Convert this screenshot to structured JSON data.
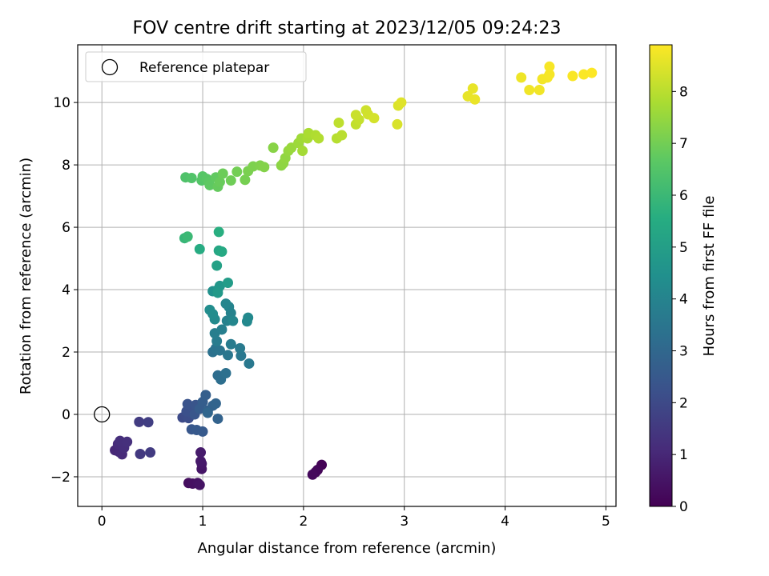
{
  "chart_data": {
    "type": "scatter",
    "title": "FOV centre drift starting at 2023/12/05 09:24:23",
    "xlabel": "Angular distance from reference (arcmin)",
    "ylabel": "Rotation from reference (arcmin)",
    "xlim": [
      -0.24,
      5.1
    ],
    "ylim": [
      -2.95,
      11.85
    ],
    "xticks": [
      0,
      1,
      2,
      3,
      4,
      5
    ],
    "xtick_labels": [
      "0",
      "1",
      "2",
      "3",
      "4",
      "5"
    ],
    "yticks": [
      -2,
      0,
      2,
      4,
      6,
      8,
      10
    ],
    "ytick_labels": [
      "−2",
      "0",
      "2",
      "4",
      "6",
      "8",
      "10"
    ],
    "grid": true,
    "legend": {
      "location": "upper left",
      "entries": [
        "Reference platepar"
      ]
    },
    "reference_point": {
      "x": 0,
      "y": 0,
      "marker": "open circle"
    },
    "colorbar": {
      "label": "Hours from first FF file",
      "colormap": "viridis",
      "range": [
        0,
        8.9
      ],
      "ticks": [
        0,
        1,
        2,
        3,
        4,
        5,
        6,
        7,
        8
      ],
      "tick_labels": [
        "0",
        "1",
        "2",
        "3",
        "4",
        "5",
        "6",
        "7",
        "8"
      ]
    },
    "points": [
      {
        "x": 2.18,
        "y": -1.62,
        "t": 0.05
      },
      {
        "x": 2.14,
        "y": -1.78,
        "t": 0.12
      },
      {
        "x": 2.12,
        "y": -1.85,
        "t": 0.18
      },
      {
        "x": 2.09,
        "y": -1.93,
        "t": 0.24
      },
      {
        "x": 0.86,
        "y": -2.2,
        "t": 0.33
      },
      {
        "x": 0.9,
        "y": -2.22,
        "t": 0.38
      },
      {
        "x": 0.95,
        "y": -2.2,
        "t": 0.43
      },
      {
        "x": 0.97,
        "y": -2.26,
        "t": 0.48
      },
      {
        "x": 0.99,
        "y": -1.75,
        "t": 0.53
      },
      {
        "x": 0.99,
        "y": -1.58,
        "t": 0.58
      },
      {
        "x": 0.98,
        "y": -1.5,
        "t": 0.63
      },
      {
        "x": 0.98,
        "y": -1.22,
        "t": 0.68
      },
      {
        "x": 0.13,
        "y": -1.15,
        "t": 1.0
      },
      {
        "x": 0.17,
        "y": -1.2,
        "t": 1.04
      },
      {
        "x": 0.2,
        "y": -1.28,
        "t": 1.08
      },
      {
        "x": 0.16,
        "y": -0.95,
        "t": 1.12
      },
      {
        "x": 0.22,
        "y": -1.07,
        "t": 1.16
      },
      {
        "x": 0.18,
        "y": -0.85,
        "t": 1.2
      },
      {
        "x": 0.25,
        "y": -0.88,
        "t": 1.24
      },
      {
        "x": 0.38,
        "y": -1.27,
        "t": 1.5
      },
      {
        "x": 0.48,
        "y": -1.22,
        "t": 1.55
      },
      {
        "x": 0.37,
        "y": -0.24,
        "t": 1.6
      },
      {
        "x": 0.46,
        "y": -0.25,
        "t": 1.65
      },
      {
        "x": 0.8,
        "y": -0.1,
        "t": 2.0
      },
      {
        "x": 0.83,
        "y": -0.05,
        "t": 2.05
      },
      {
        "x": 0.86,
        "y": -0.12,
        "t": 2.1
      },
      {
        "x": 0.88,
        "y": 0.05,
        "t": 2.15
      },
      {
        "x": 0.84,
        "y": 0.1,
        "t": 2.2
      },
      {
        "x": 0.9,
        "y": 0.22,
        "t": 2.25
      },
      {
        "x": 0.85,
        "y": 0.33,
        "t": 2.3
      },
      {
        "x": 0.93,
        "y": 0.3,
        "t": 2.35
      },
      {
        "x": 0.92,
        "y": 0.0,
        "t": 2.4
      },
      {
        "x": 0.89,
        "y": -0.48,
        "t": 2.45
      },
      {
        "x": 0.94,
        "y": -0.5,
        "t": 2.5
      },
      {
        "x": 1.0,
        "y": -0.55,
        "t": 2.55
      },
      {
        "x": 0.97,
        "y": 0.18,
        "t": 2.6
      },
      {
        "x": 1.0,
        "y": 0.4,
        "t": 2.65
      },
      {
        "x": 1.03,
        "y": 0.62,
        "t": 2.7
      },
      {
        "x": 1.05,
        "y": 0.12,
        "t": 2.75
      },
      {
        "x": 1.1,
        "y": 0.28,
        "t": 2.8
      },
      {
        "x": 1.15,
        "y": -0.14,
        "t": 2.85
      },
      {
        "x": 1.13,
        "y": 0.35,
        "t": 2.9
      },
      {
        "x": 1.05,
        "y": 0.05,
        "t": 2.95
      },
      {
        "x": 1.15,
        "y": 1.25,
        "t": 3.2
      },
      {
        "x": 1.18,
        "y": 1.12,
        "t": 3.25
      },
      {
        "x": 1.23,
        "y": 1.32,
        "t": 3.3
      },
      {
        "x": 1.1,
        "y": 2.0,
        "t": 3.35
      },
      {
        "x": 1.13,
        "y": 2.12,
        "t": 3.4
      },
      {
        "x": 1.17,
        "y": 2.05,
        "t": 3.45
      },
      {
        "x": 1.25,
        "y": 1.9,
        "t": 3.5
      },
      {
        "x": 1.38,
        "y": 1.88,
        "t": 3.55
      },
      {
        "x": 1.46,
        "y": 1.63,
        "t": 3.6
      },
      {
        "x": 1.37,
        "y": 2.12,
        "t": 3.65
      },
      {
        "x": 1.28,
        "y": 2.25,
        "t": 3.7
      },
      {
        "x": 1.14,
        "y": 2.35,
        "t": 3.75
      },
      {
        "x": 1.12,
        "y": 2.6,
        "t": 3.8
      },
      {
        "x": 1.19,
        "y": 2.72,
        "t": 3.85
      },
      {
        "x": 1.24,
        "y": 3.0,
        "t": 3.9
      },
      {
        "x": 1.28,
        "y": 3.25,
        "t": 3.95
      },
      {
        "x": 1.26,
        "y": 3.45,
        "t": 4.0
      },
      {
        "x": 1.23,
        "y": 3.55,
        "t": 4.05
      },
      {
        "x": 1.3,
        "y": 3.0,
        "t": 4.1
      },
      {
        "x": 1.44,
        "y": 2.98,
        "t": 4.15
      },
      {
        "x": 1.45,
        "y": 3.1,
        "t": 4.2
      },
      {
        "x": 1.12,
        "y": 3.05,
        "t": 4.25
      },
      {
        "x": 1.1,
        "y": 3.22,
        "t": 4.3
      },
      {
        "x": 1.07,
        "y": 3.35,
        "t": 4.35
      },
      {
        "x": 1.1,
        "y": 3.95,
        "t": 4.5
      },
      {
        "x": 1.15,
        "y": 4.0,
        "t": 4.6
      },
      {
        "x": 1.17,
        "y": 4.12,
        "t": 4.7
      },
      {
        "x": 1.15,
        "y": 3.9,
        "t": 4.8
      },
      {
        "x": 1.25,
        "y": 4.22,
        "t": 4.9
      },
      {
        "x": 1.14,
        "y": 4.77,
        "t": 5.1
      },
      {
        "x": 1.16,
        "y": 5.25,
        "t": 5.3
      },
      {
        "x": 1.19,
        "y": 5.22,
        "t": 5.4
      },
      {
        "x": 0.97,
        "y": 5.3,
        "t": 5.5
      },
      {
        "x": 1.16,
        "y": 5.85,
        "t": 5.6
      },
      {
        "x": 0.82,
        "y": 5.65,
        "t": 5.9
      },
      {
        "x": 0.85,
        "y": 5.7,
        "t": 6.0
      },
      {
        "x": 0.83,
        "y": 7.6,
        "t": 6.4
      },
      {
        "x": 0.89,
        "y": 7.58,
        "t": 6.45
      },
      {
        "x": 0.99,
        "y": 7.5,
        "t": 6.5
      },
      {
        "x": 1.0,
        "y": 7.63,
        "t": 6.55
      },
      {
        "x": 1.04,
        "y": 7.55,
        "t": 6.6
      },
      {
        "x": 1.06,
        "y": 7.45,
        "t": 6.65
      },
      {
        "x": 1.07,
        "y": 7.35,
        "t": 6.7
      },
      {
        "x": 1.13,
        "y": 7.6,
        "t": 6.75
      },
      {
        "x": 1.15,
        "y": 7.3,
        "t": 6.8
      },
      {
        "x": 1.17,
        "y": 7.45,
        "t": 6.85
      },
      {
        "x": 1.2,
        "y": 7.72,
        "t": 6.9
      },
      {
        "x": 1.28,
        "y": 7.5,
        "t": 6.95
      },
      {
        "x": 1.34,
        "y": 7.78,
        "t": 7.0
      },
      {
        "x": 1.42,
        "y": 7.52,
        "t": 7.05
      },
      {
        "x": 1.45,
        "y": 7.8,
        "t": 7.1
      },
      {
        "x": 1.5,
        "y": 7.95,
        "t": 7.15
      },
      {
        "x": 1.57,
        "y": 7.98,
        "t": 7.2
      },
      {
        "x": 1.61,
        "y": 7.93,
        "t": 7.25
      },
      {
        "x": 1.7,
        "y": 8.55,
        "t": 7.3
      },
      {
        "x": 1.78,
        "y": 7.98,
        "t": 7.35
      },
      {
        "x": 1.8,
        "y": 8.05,
        "t": 7.4
      },
      {
        "x": 1.82,
        "y": 8.22,
        "t": 7.45
      },
      {
        "x": 1.85,
        "y": 8.45,
        "t": 7.5
      },
      {
        "x": 1.88,
        "y": 8.55,
        "t": 7.55
      },
      {
        "x": 1.95,
        "y": 8.7,
        "t": 7.6
      },
      {
        "x": 1.98,
        "y": 8.85,
        "t": 7.65
      },
      {
        "x": 1.99,
        "y": 8.45,
        "t": 7.7
      },
      {
        "x": 2.04,
        "y": 8.85,
        "t": 7.75
      },
      {
        "x": 2.05,
        "y": 9.02,
        "t": 7.8
      },
      {
        "x": 2.12,
        "y": 8.95,
        "t": 7.85
      },
      {
        "x": 2.15,
        "y": 8.85,
        "t": 7.9
      },
      {
        "x": 2.33,
        "y": 8.85,
        "t": 7.95
      },
      {
        "x": 2.38,
        "y": 8.95,
        "t": 8.0
      },
      {
        "x": 2.35,
        "y": 9.35,
        "t": 8.05
      },
      {
        "x": 2.52,
        "y": 9.3,
        "t": 8.1
      },
      {
        "x": 2.55,
        "y": 9.45,
        "t": 8.15
      },
      {
        "x": 2.52,
        "y": 9.6,
        "t": 8.2
      },
      {
        "x": 2.62,
        "y": 9.75,
        "t": 8.25
      },
      {
        "x": 2.64,
        "y": 9.62,
        "t": 8.3
      },
      {
        "x": 2.7,
        "y": 9.5,
        "t": 8.35
      },
      {
        "x": 2.93,
        "y": 9.3,
        "t": 8.4
      },
      {
        "x": 2.94,
        "y": 9.9,
        "t": 8.45
      },
      {
        "x": 2.97,
        "y": 10.0,
        "t": 8.5
      },
      {
        "x": 3.63,
        "y": 10.2,
        "t": 8.6
      },
      {
        "x": 3.68,
        "y": 10.45,
        "t": 8.62
      },
      {
        "x": 3.7,
        "y": 10.1,
        "t": 8.64
      },
      {
        "x": 4.16,
        "y": 10.8,
        "t": 8.7
      },
      {
        "x": 4.24,
        "y": 10.4,
        "t": 8.72
      },
      {
        "x": 4.34,
        "y": 10.4,
        "t": 8.74
      },
      {
        "x": 4.37,
        "y": 10.75,
        "t": 8.76
      },
      {
        "x": 4.42,
        "y": 10.8,
        "t": 8.78
      },
      {
        "x": 4.44,
        "y": 10.9,
        "t": 8.8
      },
      {
        "x": 4.44,
        "y": 11.15,
        "t": 8.82
      },
      {
        "x": 4.67,
        "y": 10.85,
        "t": 8.84
      },
      {
        "x": 4.78,
        "y": 10.9,
        "t": 8.86
      },
      {
        "x": 4.86,
        "y": 10.95,
        "t": 8.88
      }
    ]
  }
}
